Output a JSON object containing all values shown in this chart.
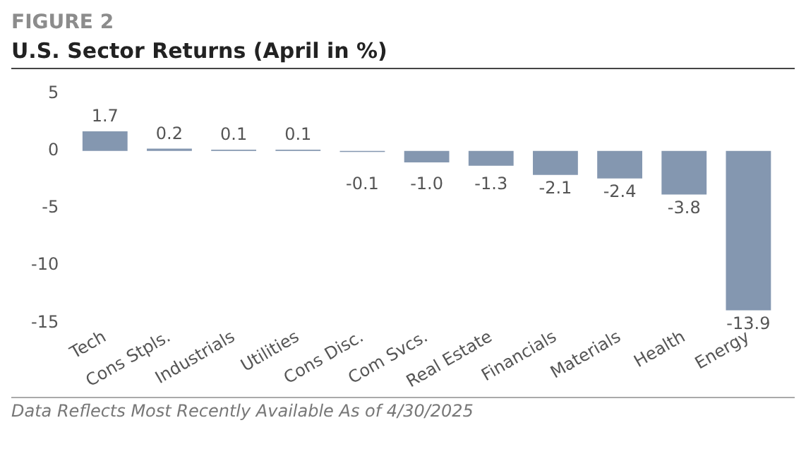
{
  "chart_data": {
    "type": "bar",
    "subtitle": "FIGURE 2",
    "title": "U.S. Sector Returns (April in %)",
    "categories": [
      "Tech",
      "Cons Stpls.",
      "Industrials",
      "Utilities",
      "Cons Disc.",
      "Com Svcs.",
      "Real Estate",
      "Financials",
      "Materials",
      "Health",
      "Energy"
    ],
    "values": [
      1.7,
      0.2,
      0.1,
      0.1,
      -0.1,
      -1.0,
      -1.3,
      -2.1,
      -2.4,
      -3.8,
      -13.9
    ],
    "value_labels": [
      "1.7",
      "0.2",
      "0.1",
      "0.1",
      "-0.1",
      "-1.0",
      "-1.3",
      "-2.1",
      "-2.4",
      "-3.8",
      "-13.9"
    ],
    "color": "#8497b0",
    "ylim": [
      -15,
      5
    ],
    "yticks": [
      -15,
      -10,
      -5,
      0,
      5
    ],
    "grid": false,
    "legend": false,
    "annotations": [
      "Data Reflects Most Recently Available As of 4/30/2025"
    ]
  }
}
